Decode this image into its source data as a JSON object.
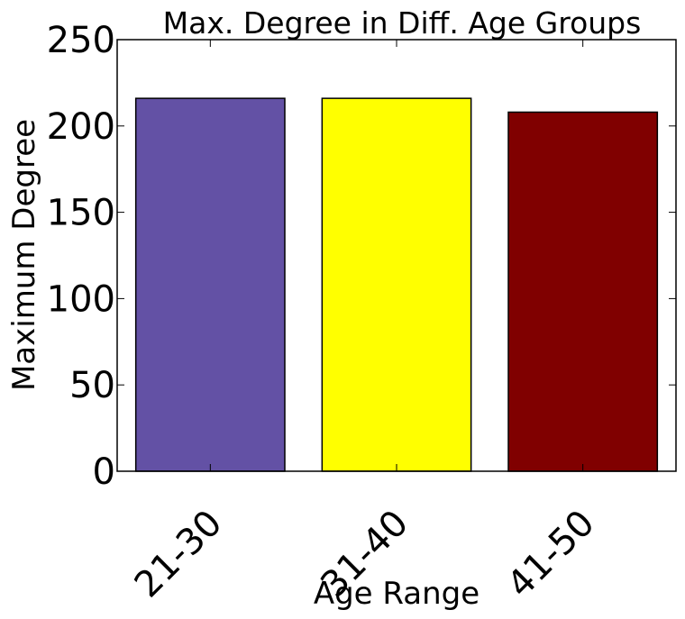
{
  "chart_data": {
    "type": "bar",
    "title": "Max. Degree in Diff. Age Groups",
    "xlabel": "Age Range",
    "ylabel": "Maximum Degree",
    "categories": [
      "21-30",
      "31-40",
      "41-50"
    ],
    "values": [
      216,
      216,
      208
    ],
    "colors": [
      "#6351a5",
      "#ffff00",
      "#800000"
    ],
    "ylim": [
      0,
      250
    ],
    "yticks": [
      0,
      50,
      100,
      150,
      200,
      250
    ],
    "ytick_labels": [
      "0",
      "50",
      "100",
      "150",
      "200",
      "250"
    ],
    "grid": false,
    "legend": "none"
  }
}
